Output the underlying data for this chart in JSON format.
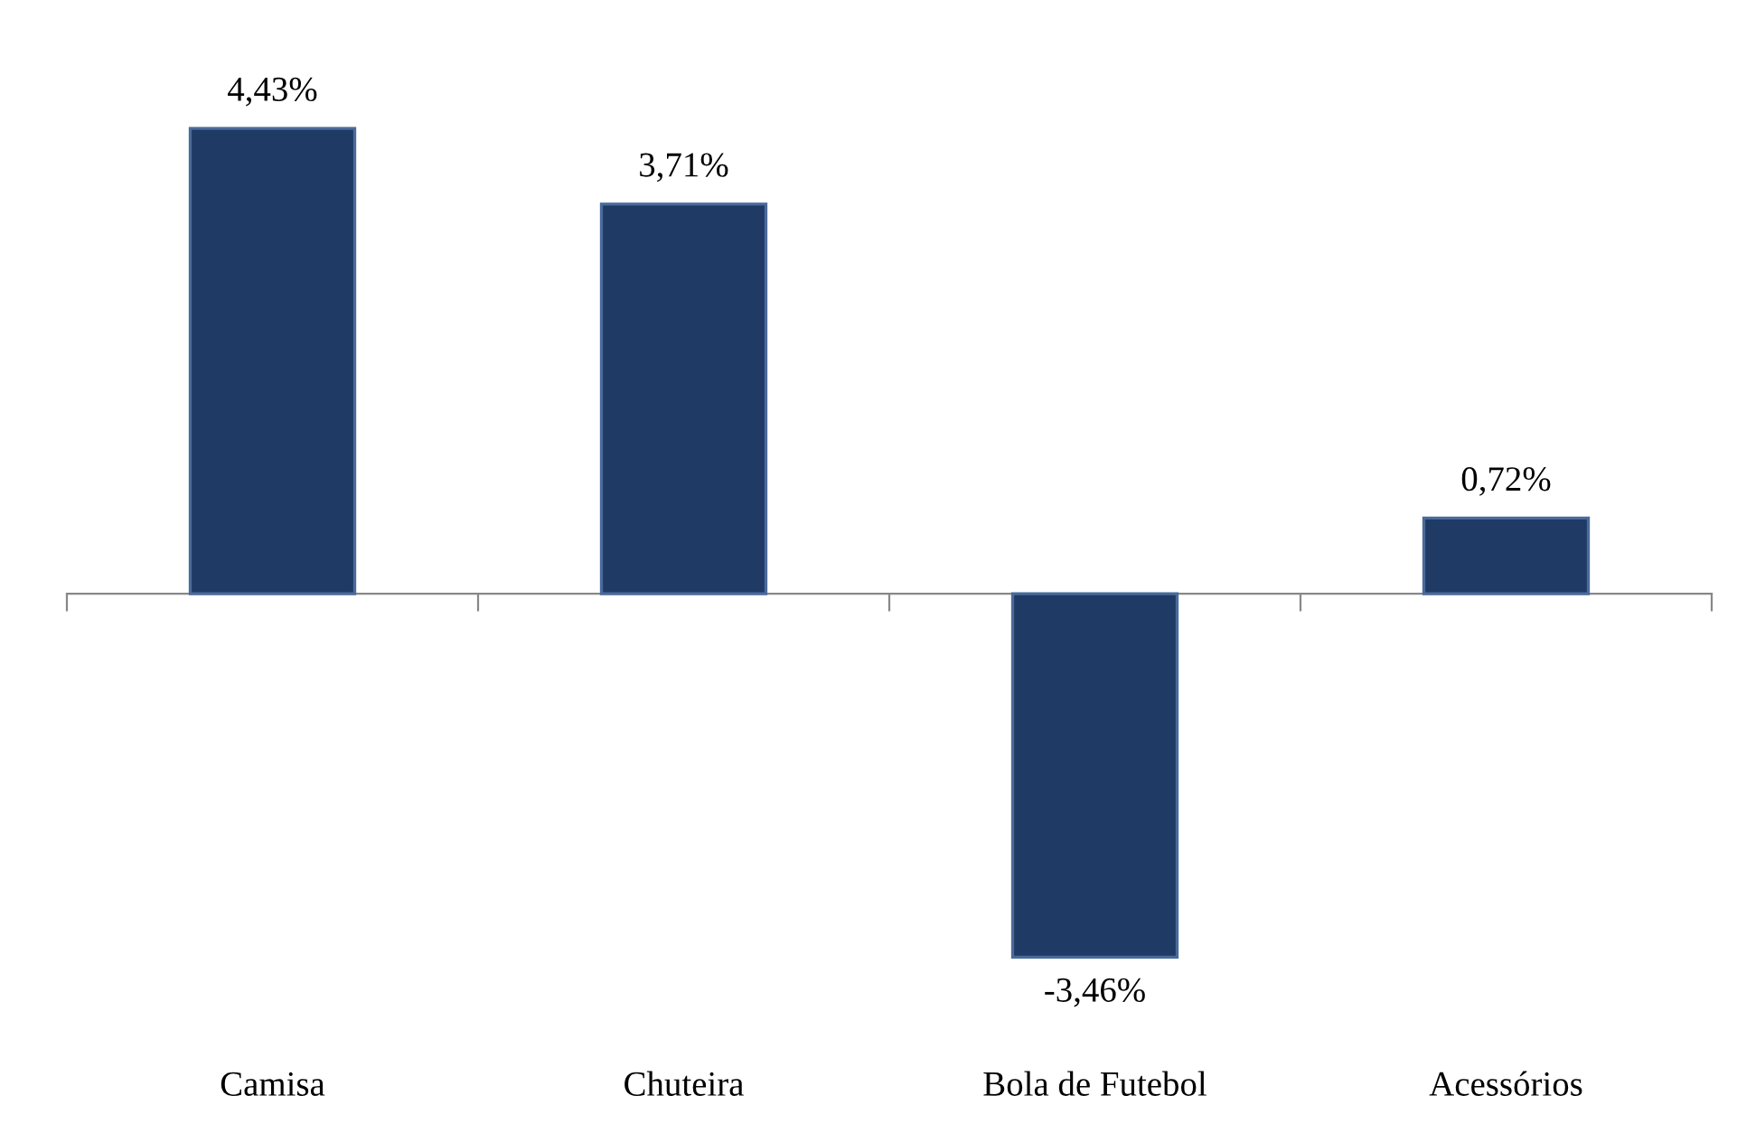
{
  "chart_data": {
    "type": "bar",
    "categories": [
      "Camisa",
      "Chuteira",
      "Bola de Futebol",
      "Acessórios"
    ],
    "values": [
      4.43,
      3.71,
      -3.46,
      0.72
    ],
    "value_labels": [
      "4,43%",
      "3,71%",
      "-3,46%",
      "0,72%"
    ],
    "color": "#1f3a64",
    "grid": false,
    "legend": false
  }
}
